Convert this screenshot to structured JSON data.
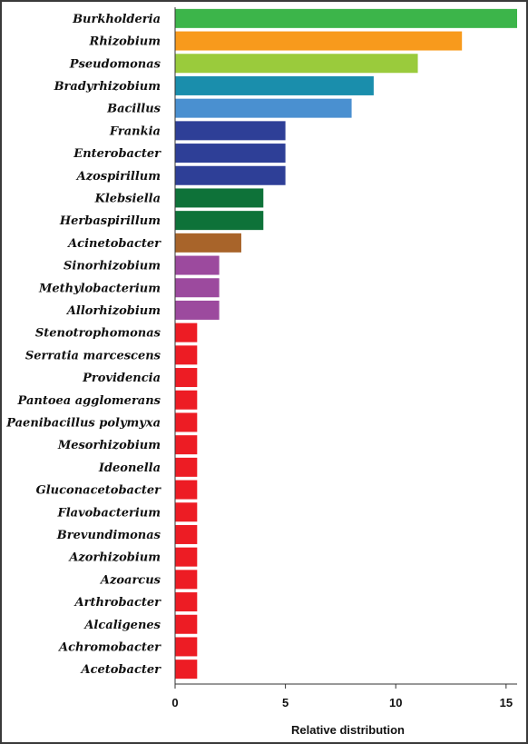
{
  "chart_data": {
    "type": "bar",
    "orientation": "horizontal",
    "title": "",
    "xlabel": "Relative distribution",
    "ylabel": "",
    "xlim": [
      0,
      15.5
    ],
    "x_ticks": [
      0,
      5,
      10,
      15
    ],
    "grid": false,
    "legend": "none",
    "categories": [
      "Burkholderia",
      "Rhizobium",
      "Pseudomonas",
      "Bradyrhizobium",
      "Bacillus",
      "Frankia",
      "Enterobacter",
      "Azospirillum",
      "Klebsiella",
      "Herbaspirillum",
      "Acinetobacter",
      "Sinorhizobium",
      "Methylobacterium",
      "Allorhizobium",
      "Stenotrophomonas",
      "Serratia marcescens",
      "Providencia",
      "Pantoea agglomerans",
      "Paenibacillus polymyxa",
      "Mesorhizobium",
      "Ideonella",
      "Gluconacetobacter",
      "Flavobacterium",
      "Brevundimonas",
      "Azorhizobium",
      "Azoarcus",
      "Arthrobacter",
      "Alcaligenes",
      "Achromobacter",
      "Acetobacter"
    ],
    "values": [
      15.5,
      13,
      11,
      9,
      8,
      5,
      5,
      5,
      4,
      4,
      3,
      2,
      2,
      2,
      1,
      1,
      1,
      1,
      1,
      1,
      1,
      1,
      1,
      1,
      1,
      1,
      1,
      1,
      1,
      1
    ],
    "colors": [
      "#3cb54a",
      "#f89a1c",
      "#9acb3c",
      "#1a8eac",
      "#4a90d0",
      "#2e3f97",
      "#2e3f97",
      "#2e3f97",
      "#0e7239",
      "#0e7239",
      "#a8642a",
      "#9c4a9e",
      "#9c4a9e",
      "#9c4a9e",
      "#ed1c24",
      "#ed1c24",
      "#ed1c24",
      "#ed1c24",
      "#ed1c24",
      "#ed1c24",
      "#ed1c24",
      "#ed1c24",
      "#ed1c24",
      "#ed1c24",
      "#ed1c24",
      "#ed1c24",
      "#ed1c24",
      "#ed1c24",
      "#ed1c24",
      "#ed1c24"
    ]
  }
}
